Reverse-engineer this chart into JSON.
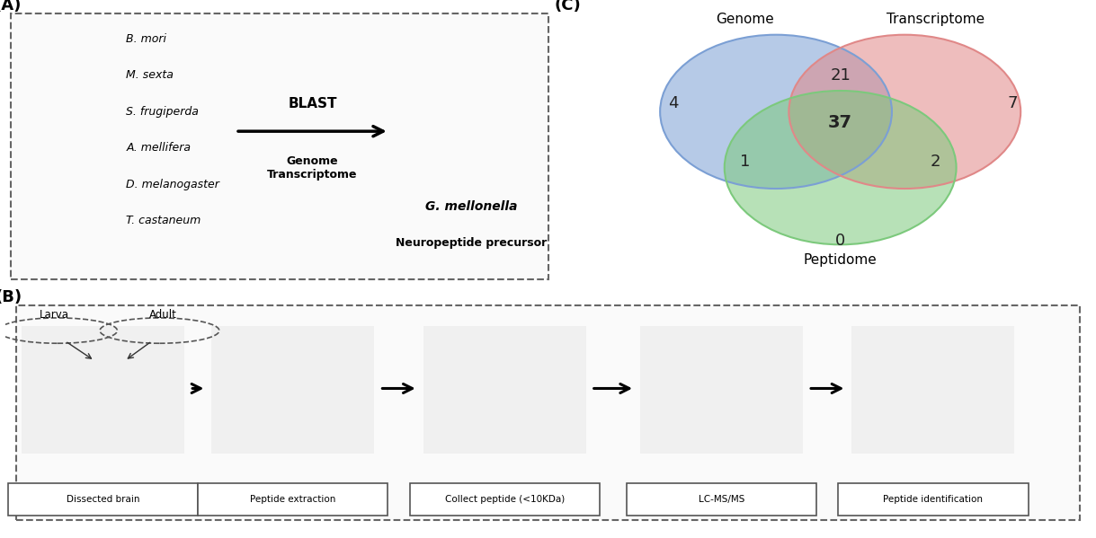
{
  "bg_color": "#ffffff",
  "panel_bg": "#f5f5f5",
  "panel_a": {
    "title": "(A)",
    "insects": [
      "B. mori",
      "M. sexta",
      "S. frugiperda",
      "A. mellifera",
      "D. melanogaster",
      "T. castaneum"
    ],
    "blast_label": "BLAST",
    "genome_transcriptome": "Genome\nTranscriptome",
    "target_species": "G. mellonella",
    "neuropeptide": "Neuropeptide precursor"
  },
  "panel_b": {
    "title": "(B)",
    "steps": [
      "Dissected brain",
      "Peptide extraction",
      "Collect peptide (<10KDa)",
      "LC-MS/MS",
      "Peptide identification"
    ],
    "larva_label": "Larva",
    "adult_label": "Adult"
  },
  "panel_c": {
    "title": "(C)",
    "circle1_label": "Genome",
    "circle2_label": "Transcriptome",
    "circle3_label": "Peptidome",
    "circle1_color": "#7b9fd4",
    "circle2_color": "#e08888",
    "circle3_color": "#7cc97c",
    "circle1_only": "4",
    "circle2_only": "7",
    "circle3_only": "0",
    "circle12": "21",
    "circle13": "1",
    "circle23": "2",
    "circle123": "37"
  }
}
